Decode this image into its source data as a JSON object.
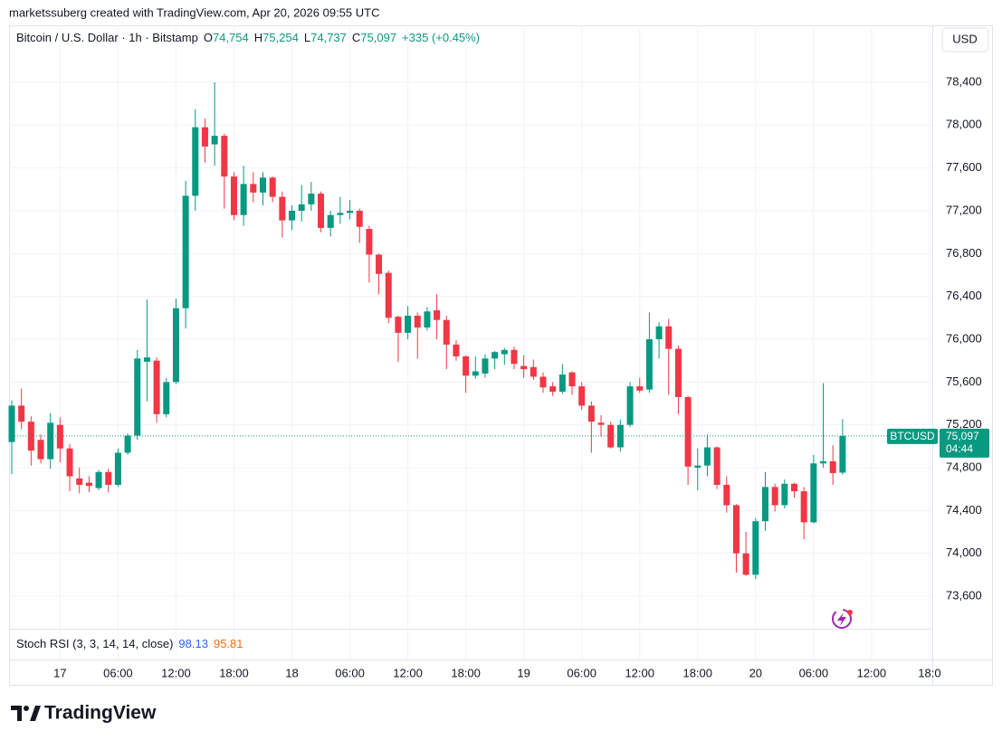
{
  "attribution": "marketssuberg created with TradingView.com, Apr 20, 2026 09:55 UTC",
  "brand": "TradingView",
  "chart_data": {
    "type": "candlestick",
    "symbol": "Bitcoin / U.S. Dollar · 1h · Bitstamp",
    "ohlc_legend": [
      {
        "label": "O",
        "value": "74,754"
      },
      {
        "label": "H",
        "value": "75,254"
      },
      {
        "label": "L",
        "value": "74,737"
      },
      {
        "label": "C",
        "value": "75,097"
      }
    ],
    "change": "+335 (+0.45%)",
    "currency": "USD",
    "last_price": {
      "symbol": "BTCUSD",
      "price": "75,097",
      "countdown": "04:44"
    },
    "stoch_rsi": {
      "title": "Stoch RSI (3, 3, 14, 14, close)",
      "k": "98.13",
      "d": "95.81",
      "k_color": "#2962ff",
      "d_color": "#ff6d00"
    },
    "up_color": "#089981",
    "down_color": "#f23645",
    "grid": true,
    "categories": [
      null,
      null,
      null,
      null,
      null,
      "17",
      null,
      null,
      null,
      null,
      null,
      "06:00",
      null,
      null,
      null,
      null,
      null,
      "12:00",
      null,
      null,
      null,
      null,
      null,
      "18:00",
      null,
      null,
      null,
      null,
      null,
      "18",
      null,
      null,
      null,
      null,
      null,
      "06:00",
      null,
      null,
      null,
      null,
      null,
      "12:00",
      null,
      null,
      null,
      null,
      null,
      "18:00",
      null,
      null,
      null,
      null,
      null,
      "19",
      null,
      null,
      null,
      null,
      null,
      "06:00",
      null,
      null,
      null,
      null,
      null,
      "12:00",
      null,
      null,
      null,
      null,
      null,
      "18:00",
      null,
      null,
      null,
      null,
      null,
      "20",
      null,
      null,
      null,
      null,
      null,
      "06:00",
      null,
      null,
      null,
      null,
      null,
      "12:00",
      null,
      null,
      null,
      null,
      null,
      "18:0"
    ],
    "open": [
      75040,
      75380,
      75230,
      75060,
      74880,
      75200,
      74980,
      74700,
      74660,
      74610,
      74760,
      74640,
      74940,
      75100,
      75790,
      75800,
      75300,
      75600,
      76290,
      77340,
      77980,
      77820,
      77900,
      77520,
      77160,
      77450,
      77370,
      77510,
      77330,
      77110,
      77200,
      77260,
      77360,
      77040,
      77160,
      77180,
      77200,
      77030,
      76790,
      76620,
      76210,
      76060,
      76220,
      76110,
      76270,
      76180,
      75950,
      75840,
      75660,
      75680,
      75820,
      75860,
      75900,
      75750,
      75740,
      75650,
      75560,
      75510,
      75690,
      75560,
      75380,
      75220,
      75200,
      74990,
      75200,
      75560,
      75530,
      76000,
      76120,
      75910,
      75460,
      74800,
      74820,
      74990,
      74640,
      74450,
      74000,
      73800,
      74300,
      74620,
      74450,
      74650,
      74580,
      74290,
      74840,
      74860,
      74754,
      null,
      null,
      null,
      null,
      null,
      null,
      null,
      null,
      null
    ],
    "high": [
      75430,
      75540,
      75280,
      75110,
      75310,
      75270,
      75020,
      74800,
      74720,
      74780,
      74790,
      74980,
      75120,
      75900,
      76370,
      75830,
      75640,
      76380,
      77480,
      78150,
      78060,
      78400,
      77920,
      77560,
      77620,
      77560,
      77560,
      77520,
      77380,
      77250,
      77440,
      77470,
      77380,
      77200,
      77330,
      77300,
      77220,
      77060,
      76800,
      76640,
      76220,
      76310,
      76250,
      76300,
      76420,
      76220,
      75990,
      75850,
      75840,
      75860,
      75890,
      75920,
      75930,
      75850,
      75810,
      75690,
      75600,
      75770,
      75700,
      75600,
      75420,
      75290,
      75230,
      75250,
      75600,
      75640,
      76250,
      76160,
      76190,
      75940,
      75470,
      74980,
      75110,
      75000,
      74720,
      74460,
      74200,
      74330,
      74760,
      74650,
      74690,
      74660,
      74620,
      74920,
      75590,
      75010,
      75254,
      null,
      null,
      null,
      null,
      null,
      null,
      null,
      null,
      null
    ],
    "low": [
      74740,
      75160,
      74820,
      74840,
      74790,
      74850,
      74580,
      74560,
      74570,
      74590,
      74570,
      74620,
      74920,
      75060,
      75420,
      75220,
      75270,
      75580,
      76100,
      77200,
      77650,
      77620,
      77220,
      77110,
      77060,
      77280,
      77250,
      77280,
      76950,
      77020,
      77100,
      77200,
      77000,
      76960,
      77080,
      77120,
      76900,
      76530,
      76420,
      76150,
      75790,
      76000,
      75820,
      76080,
      76000,
      75720,
      75800,
      75500,
      75630,
      75640,
      75720,
      75760,
      75720,
      75640,
      75620,
      75500,
      75470,
      75490,
      75480,
      75340,
      74940,
      75090,
      74980,
      74950,
      75180,
      75500,
      75500,
      75820,
      75480,
      75300,
      74640,
      74590,
      74720,
      74600,
      74380,
      73820,
      73790,
      73760,
      74210,
      74390,
      74420,
      74520,
      74130,
      74280,
      74800,
      74640,
      74737,
      null,
      null,
      null,
      null,
      null,
      null,
      null,
      null,
      null
    ],
    "close": [
      75380,
      75230,
      74960,
      74880,
      75220,
      74980,
      74720,
      74640,
      74630,
      74760,
      74640,
      74940,
      75100,
      75820,
      75830,
      75300,
      75600,
      76290,
      77340,
      77980,
      77800,
      77900,
      77520,
      77160,
      77450,
      77370,
      77510,
      77330,
      77110,
      77200,
      77260,
      77360,
      77040,
      77160,
      77180,
      77200,
      77050,
      76790,
      76610,
      76200,
      76060,
      76220,
      76110,
      76260,
      76180,
      75950,
      75840,
      75660,
      75700,
      75820,
      75880,
      75900,
      75770,
      75720,
      75650,
      75550,
      75510,
      75670,
      75560,
      75380,
      75230,
      75200,
      74990,
      75200,
      75560,
      75520,
      76000,
      76120,
      75910,
      75460,
      74810,
      74820,
      74990,
      74640,
      74450,
      74000,
      73800,
      74300,
      74620,
      74450,
      74650,
      74580,
      74290,
      74840,
      74860,
      74750,
      75097,
      null,
      null,
      null,
      null,
      null,
      null,
      null,
      null,
      null
    ],
    "ylim": [
      73296,
      78932
    ],
    "yticks": [
      {
        "value": 73600,
        "label": "73,600"
      },
      {
        "value": 74000,
        "label": "74,000"
      },
      {
        "value": 74400,
        "label": "74,400"
      },
      {
        "value": 74800,
        "label": "74,800"
      },
      {
        "value": 75200,
        "label": "75,200"
      },
      {
        "value": 75600,
        "label": "75,600"
      },
      {
        "value": 76000,
        "label": "76,000"
      },
      {
        "value": 76400,
        "label": "76,400"
      },
      {
        "value": 76800,
        "label": "76,800"
      },
      {
        "value": 77200,
        "label": "77,200"
      },
      {
        "value": 77600,
        "label": "77,600"
      },
      {
        "value": 78000,
        "label": "78,000"
      },
      {
        "value": 78400,
        "label": "78,400"
      }
    ]
  }
}
